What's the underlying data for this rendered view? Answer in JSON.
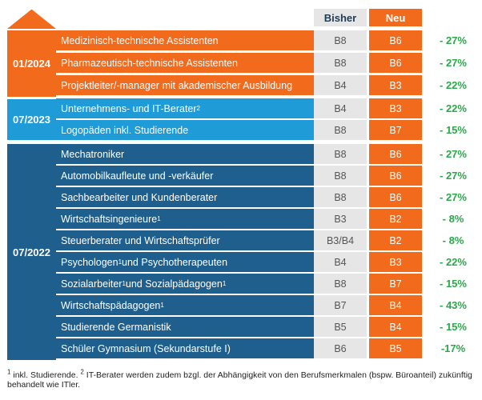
{
  "header": {
    "bisher": "Bisher",
    "neu": "Neu"
  },
  "groups": [
    {
      "label": "01/2024"
    },
    {
      "label": "07/2023"
    },
    {
      "label": "07/2022"
    }
  ],
  "rows": [
    {
      "name": "Medizinisch-technische Assistenten",
      "sup": "",
      "name_rest": "",
      "sup2": "",
      "name_rest2": "",
      "bisher": "B8",
      "neu": "B6",
      "change": "- 27%"
    },
    {
      "name": "Pharmazeutisch-technische Assistenten",
      "sup": "",
      "name_rest": "",
      "sup2": "",
      "name_rest2": "",
      "bisher": "B8",
      "neu": "B6",
      "change": "- 27%"
    },
    {
      "name": "Projektleiter/-manager mit akademischer Ausbildung",
      "sup": "",
      "name_rest": "",
      "sup2": "",
      "name_rest2": "",
      "bisher": "B4",
      "neu": "B3",
      "change": "- 22%"
    },
    {
      "name": "Unternehmens- und IT-Berater",
      "sup": "2",
      "name_rest": "",
      "sup2": "",
      "name_rest2": "",
      "bisher": "B4",
      "neu": "B3",
      "change": "- 22%"
    },
    {
      "name": "Logopäden inkl. Studierende",
      "sup": "",
      "name_rest": "",
      "sup2": "",
      "name_rest2": "",
      "bisher": "B8",
      "neu": "B7",
      "change": "- 15%"
    },
    {
      "name": "Mechatroniker",
      "sup": "",
      "name_rest": "",
      "sup2": "",
      "name_rest2": "",
      "bisher": "B8",
      "neu": "B6",
      "change": "- 27%"
    },
    {
      "name": "Automobilkaufleute und -verkäufer",
      "sup": "",
      "name_rest": "",
      "sup2": "",
      "name_rest2": "",
      "bisher": "B8",
      "neu": "B6",
      "change": "- 27%"
    },
    {
      "name": "Sachbearbeiter und Kundenberater",
      "sup": "",
      "name_rest": "",
      "sup2": "",
      "name_rest2": "",
      "bisher": "B8",
      "neu": "B6",
      "change": "- 27%"
    },
    {
      "name": "Wirtschaftsingenieure",
      "sup": "1",
      "name_rest": "",
      "sup2": "",
      "name_rest2": "",
      "bisher": "B3",
      "neu": "B2",
      "change": "- 8%"
    },
    {
      "name": "Steuerberater und Wirtschaftsprüfer",
      "sup": "",
      "name_rest": "",
      "sup2": "",
      "name_rest2": "",
      "bisher": "B3/B4",
      "neu": "B2",
      "change": "- 8%"
    },
    {
      "name": "Psychologen",
      "sup": "1",
      "name_rest": " und Psychotherapeuten",
      "sup2": "",
      "name_rest2": "",
      "bisher": "B4",
      "neu": "B3",
      "change": "- 22%"
    },
    {
      "name": "Sozialarbeiter",
      "sup": "1",
      "name_rest": " und Sozialpädagogen",
      "sup2": "1",
      "name_rest2": "",
      "bisher": "B8",
      "neu": "B7",
      "change": "- 15%"
    },
    {
      "name": "Wirtschaftspädagogen",
      "sup": "1",
      "name_rest": "",
      "sup2": "",
      "name_rest2": "",
      "bisher": "B7",
      "neu": "B4",
      "change": "- 43%"
    },
    {
      "name": "Studierende Germanistik",
      "sup": "",
      "name_rest": "",
      "sup2": "",
      "name_rest2": "",
      "bisher": "B5",
      "neu": "B4",
      "change": "- 15%"
    },
    {
      "name": "Schüler Gymnasium (Sekundarstufe I)",
      "sup": "",
      "name_rest": "",
      "sup2": "",
      "name_rest2": "",
      "bisher": "B6",
      "neu": "B5",
      "change": "-17%"
    }
  ],
  "footnote": {
    "sup1": "1",
    "text1": " inkl. Studierende. ",
    "sup2": "2",
    "text2": " IT-Berater werden zudem bzgl. der Abhängigkeit von den Berufsmerkmalen (bspw. Büroanteil) zukünftig behandelt wie ITler."
  },
  "colors": {
    "orange": "#f26b1d",
    "light_blue": "#1f9bd7",
    "dark_blue": "#1f5f8e",
    "green": "#2aa84a",
    "grey": "#e6e6e6"
  }
}
